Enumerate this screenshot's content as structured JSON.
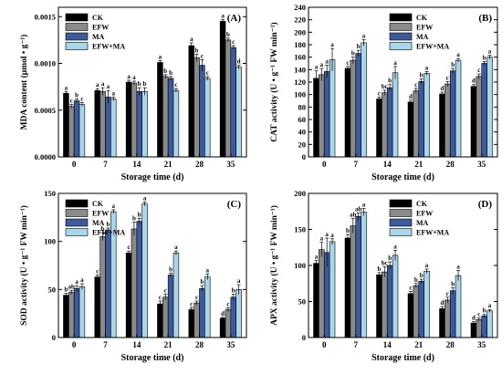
{
  "legend_labels": [
    "CK",
    "EFW",
    "MA",
    "EFW+MA"
  ],
  "colors": {
    "CK": "#000000",
    "EFW": "#8a8a8a",
    "MA": "#3d5a9c",
    "EFW+MA": "#a9d6ea",
    "axis": "#000000"
  },
  "chart_data": [
    {
      "type": "bar",
      "panel_label": "(A)",
      "title": "",
      "xlabel": "Storage time (d)",
      "ylabel": "MDA content (μmol • g⁻¹)",
      "categories": [
        "0",
        "7",
        "14",
        "21",
        "28",
        "35"
      ],
      "ylim": [
        0,
        0.0016
      ],
      "yticks": [
        0,
        0.0005,
        0.001,
        0.0015
      ],
      "ytick_labels": [
        "0.0000",
        "0.0005",
        "0.0010",
        "0.0015"
      ],
      "legend_position": "top-left",
      "series": [
        {
          "name": "CK",
          "values": [
            0.00068,
            0.00071,
            0.0008,
            0.00101,
            0.00119,
            0.00145
          ],
          "errors": [
            2e-05,
            2e-05,
            2e-05,
            2e-05,
            3e-05,
            2e-05
          ],
          "letters": [
            "a",
            "a",
            "a",
            "a",
            "a",
            "a"
          ]
        },
        {
          "name": "EFW",
          "values": [
            0.00054,
            0.0007,
            0.00079,
            0.00086,
            0.00106,
            0.00125
          ],
          "errors": [
            2e-05,
            4e-05,
            2e-05,
            2e-05,
            4e-05,
            2e-05
          ],
          "letters": [
            "c",
            "a",
            "a",
            "b",
            "b",
            "b"
          ]
        },
        {
          "name": "MA",
          "values": [
            0.0006,
            0.00064,
            0.0007,
            0.00084,
            0.00098,
            0.00117
          ],
          "errors": [
            2e-05,
            7e-05,
            4e-05,
            2e-05,
            6e-05,
            2e-05
          ],
          "letters": [
            "b",
            "a",
            "b",
            "b",
            "c",
            "c"
          ]
        },
        {
          "name": "EFW+MA",
          "values": [
            0.00056,
            0.00062,
            0.0007,
            0.00071,
            0.00084,
            0.00096
          ],
          "errors": [
            2e-05,
            2e-05,
            4e-05,
            2e-05,
            2e-05,
            2e-05
          ],
          "letters": [
            "c",
            "a",
            "b",
            "c",
            "c",
            "d"
          ]
        }
      ]
    },
    {
      "type": "bar",
      "panel_label": "(B)",
      "title": "",
      "xlabel": "Storage time (d)",
      "ylabel": "CAT activity (U • g⁻¹ FW min⁻¹)",
      "categories": [
        "0",
        "7",
        "14",
        "21",
        "28",
        "35"
      ],
      "ylim": [
        0,
        240
      ],
      "yticks": [
        0,
        20,
        40,
        60,
        80,
        100,
        120,
        140,
        160,
        180,
        200,
        220,
        240
      ],
      "ytick_labels": [
        "0",
        "20",
        "40",
        "60",
        "80",
        "100",
        "120",
        "140",
        "160",
        "180",
        "200",
        "220",
        "240"
      ],
      "legend_position": "top-right",
      "series": [
        {
          "name": "CK",
          "values": [
            126,
            142,
            93,
            88,
            101,
            113
          ],
          "errors": [
            12,
            3,
            3,
            3,
            3,
            3
          ],
          "letters": [
            "a",
            "c",
            "c",
            "d",
            "d",
            "d"
          ]
        },
        {
          "name": "EFW",
          "values": [
            132,
            155,
            103,
            106,
            117,
            129
          ],
          "errors": [
            10,
            5,
            4,
            4,
            4,
            4
          ],
          "letters": [
            "a",
            "b",
            "bc",
            "c",
            "c",
            "c"
          ]
        },
        {
          "name": "MA",
          "values": [
            137,
            166,
            111,
            121,
            138,
            150
          ],
          "errors": [
            10,
            5,
            5,
            4,
            4,
            3
          ],
          "letters": [
            "a",
            "b",
            "b",
            "b",
            "b",
            "b"
          ]
        },
        {
          "name": "EFW+MA",
          "values": [
            156,
            183,
            135,
            134,
            155,
            160
          ],
          "errors": [
            18,
            5,
            10,
            3,
            3,
            3
          ],
          "letters": [
            "a",
            "a",
            "a",
            "a",
            "a",
            "a"
          ]
        }
      ]
    },
    {
      "type": "bar",
      "panel_label": "(C)",
      "title": "",
      "xlabel": "Storage time (d)",
      "ylabel": "SOD activity (U • g⁻¹ FW min⁻¹)",
      "categories": [
        "0",
        "7",
        "14",
        "21",
        "28",
        "35"
      ],
      "ylim": [
        0,
        150
      ],
      "yticks": [
        0,
        50,
        100,
        150
      ],
      "ytick_labels": [
        "0",
        "50",
        "100",
        "150"
      ],
      "legend_position": "top-left",
      "series": [
        {
          "name": "CK",
          "values": [
            44,
            63,
            88,
            35,
            29,
            20
          ],
          "errors": [
            2,
            2,
            2,
            3,
            2,
            1
          ],
          "letters": [
            "b",
            "c",
            "c",
            "c",
            "c",
            "d"
          ]
        },
        {
          "name": "EFW",
          "values": [
            47,
            105,
            113,
            42,
            36,
            29
          ],
          "errors": [
            2,
            4,
            7,
            3,
            2,
            2
          ],
          "letters": [
            "ab",
            "b",
            "b",
            "c",
            "c",
            "c"
          ]
        },
        {
          "name": "MA",
          "values": [
            51,
            112,
            121,
            65,
            51,
            42
          ],
          "errors": [
            3,
            2,
            3,
            2,
            3,
            3
          ],
          "letters": [
            "a",
            "b",
            "b",
            "b",
            "b",
            "b"
          ]
        },
        {
          "name": "EFW+MA",
          "values": [
            53,
            131,
            139,
            88,
            63,
            50
          ],
          "errors": [
            3,
            2,
            2,
            2,
            3,
            5
          ],
          "letters": [
            "a",
            "a",
            "a",
            "a",
            "a",
            "a"
          ]
        }
      ]
    },
    {
      "type": "bar",
      "panel_label": "(D)",
      "title": "",
      "xlabel": "Storage time (d)",
      "ylabel": "APX activity (U • g⁻¹ FW min⁻¹)",
      "categories": [
        "0",
        "7",
        "14",
        "21",
        "28",
        "35"
      ],
      "ylim": [
        0,
        200
      ],
      "yticks": [
        0,
        50,
        100,
        150,
        200
      ],
      "ytick_labels": [
        "0",
        "50",
        "100",
        "150",
        "200"
      ],
      "legend_position": "top-right",
      "series": [
        {
          "name": "CK",
          "values": [
            103,
            138,
            87,
            61,
            40,
            20
          ],
          "errors": [
            4,
            5,
            3,
            3,
            3,
            2
          ],
          "letters": [
            "a",
            "b",
            "b",
            "c",
            "d",
            "d"
          ]
        },
        {
          "name": "EFW",
          "values": [
            122,
            155,
            91,
            72,
            52,
            25
          ],
          "errors": [
            10,
            10,
            7,
            3,
            4,
            2
          ],
          "letters": [
            "a",
            "ab",
            "bc",
            "b",
            "c",
            "c"
          ]
        },
        {
          "name": "MA",
          "values": [
            118,
            168,
            100,
            78,
            65,
            30
          ],
          "errors": [
            20,
            5,
            5,
            3,
            4,
            2
          ],
          "letters": [
            "a",
            "ab",
            "b",
            "b",
            "b",
            "b"
          ]
        },
        {
          "name": "EFW+MA",
          "values": [
            133,
            174,
            114,
            92,
            86,
            37
          ],
          "errors": [
            4,
            5,
            7,
            3,
            7,
            2
          ],
          "letters": [
            "a",
            "a",
            "a",
            "a",
            "a",
            "a"
          ]
        }
      ]
    }
  ]
}
